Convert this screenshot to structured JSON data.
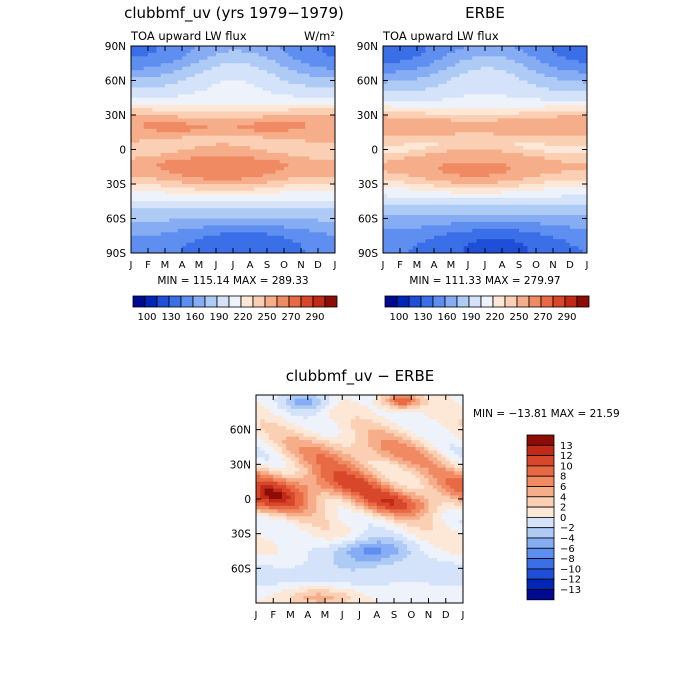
{
  "colors": {
    "fill_levels": [
      "#00098f",
      "#0026b8",
      "#1f4fd8",
      "#3a6fe8",
      "#5e8ff0",
      "#86acf3",
      "#aecbf6",
      "#d4e3f9",
      "#eef3fb",
      "#fde8d8",
      "#fbcfb3",
      "#f6ae8a",
      "#f08a63",
      "#e86a45",
      "#d9472a",
      "#c02a16",
      "#8e0c07"
    ]
  },
  "chart_data": [
    {
      "type": "heatmap",
      "id": "panel_model",
      "title": "clubbmf_uv (yrs 1979−1979)",
      "subtitle": "TOA upward LW flux",
      "units": "W/m²",
      "xlabel": "",
      "ylabel": "",
      "x_ticks": [
        "J",
        "F",
        "M",
        "A",
        "M",
        "J",
        "J",
        "A",
        "S",
        "O",
        "N",
        "D",
        "J"
      ],
      "y_ticks": [
        "90N",
        "60N",
        "30N",
        "0",
        "30S",
        "60S",
        "90S"
      ],
      "ylim": [
        -90,
        90
      ],
      "stats": "MIN = 115.14 MAX = 289.33",
      "colorbar_labels": [
        "100",
        "130",
        "160",
        "190",
        "220",
        "250",
        "270",
        "290"
      ],
      "colorbar_levels": [
        100,
        115,
        130,
        145,
        160,
        175,
        190,
        205,
        220,
        235,
        250,
        260,
        270,
        280,
        290
      ]
    },
    {
      "type": "heatmap",
      "id": "panel_obs",
      "title": "ERBE",
      "subtitle": "TOA upward LW flux",
      "x_ticks": [
        "J",
        "F",
        "M",
        "A",
        "M",
        "J",
        "J",
        "A",
        "S",
        "O",
        "N",
        "D",
        "J"
      ],
      "y_ticks": [
        "90N",
        "60N",
        "30N",
        "0",
        "30S",
        "60S",
        "90S"
      ],
      "ylim": [
        -90,
        90
      ],
      "stats": "MIN = 111.33 MAX = 279.97",
      "colorbar_labels": [
        "100",
        "130",
        "160",
        "190",
        "220",
        "250",
        "270",
        "290"
      ],
      "colorbar_levels": [
        100,
        115,
        130,
        145,
        160,
        175,
        190,
        205,
        220,
        235,
        250,
        260,
        270,
        280,
        290
      ]
    },
    {
      "type": "heatmap",
      "id": "panel_diff",
      "title": "clubbmf_uv − ERBE",
      "x_ticks": [
        "J",
        "F",
        "M",
        "A",
        "M",
        "J",
        "J",
        "A",
        "S",
        "O",
        "N",
        "D",
        "J"
      ],
      "y_ticks": [
        "60N",
        "30N",
        "0",
        "30S",
        "60S"
      ],
      "ylim": [
        -90,
        90
      ],
      "stats": "MIN = −13.81 MAX =  21.59",
      "colorbar_labels": [
        "13",
        "12",
        "10",
        "8",
        "6",
        "4",
        "2",
        "0",
        "−2",
        "−4",
        "−6",
        "−8",
        "−10",
        "−12",
        "−13"
      ],
      "colorbar_levels": [
        -13,
        -12,
        -10,
        -8,
        -6,
        -4,
        -2,
        0,
        2,
        4,
        6,
        8,
        10,
        12,
        13
      ]
    }
  ]
}
